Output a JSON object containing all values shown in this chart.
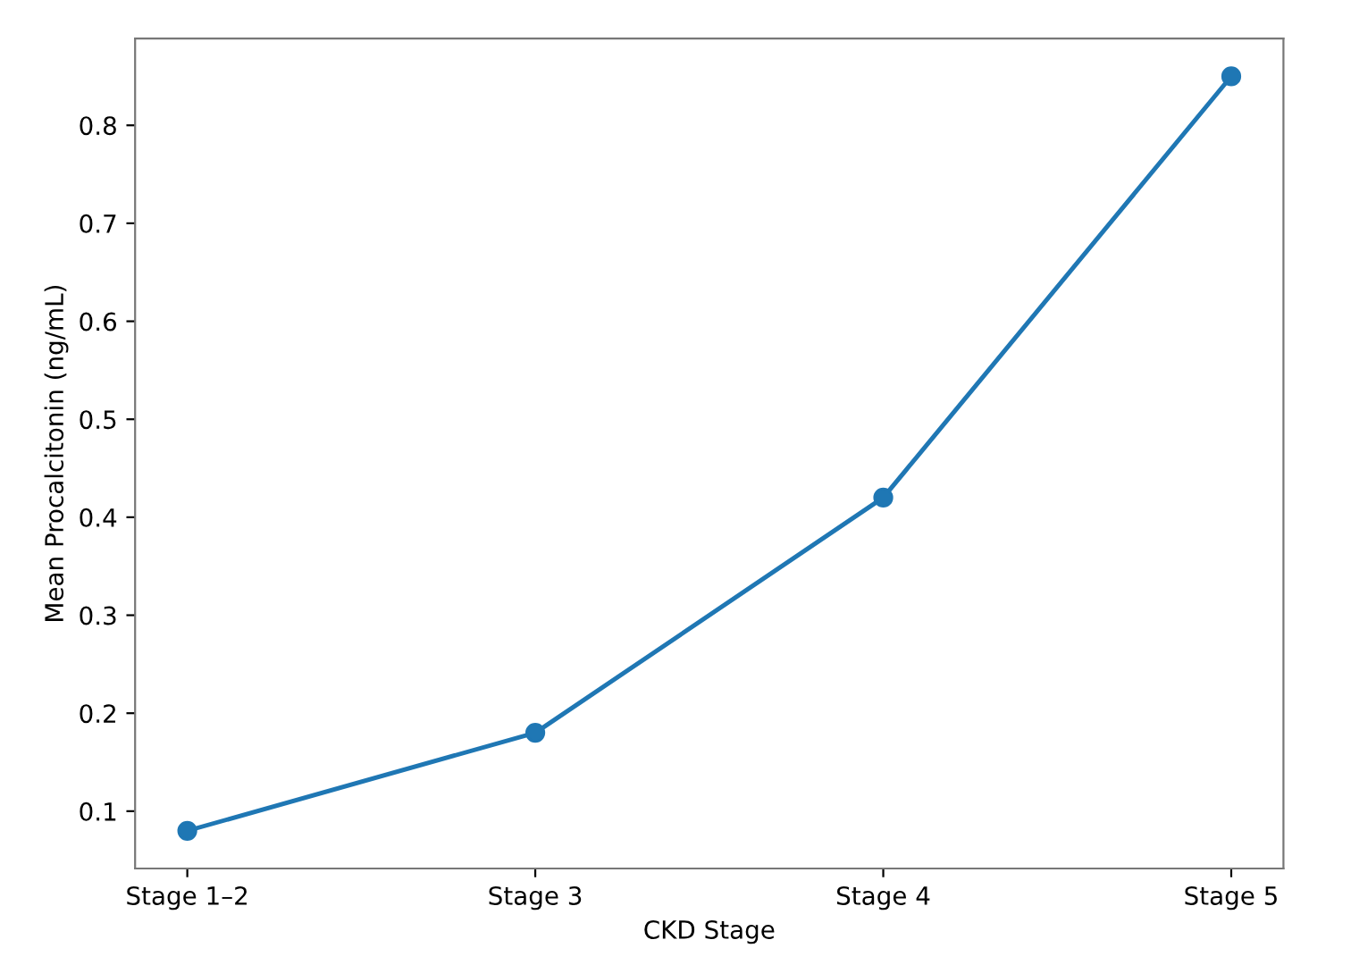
{
  "chart_data": {
    "type": "line",
    "xlabel": "CKD Stage",
    "ylabel": "Mean Procalcitonin (ng/mL)",
    "categories": [
      "Stage 1–2",
      "Stage 3",
      "Stage 4",
      "Stage 5"
    ],
    "series": [
      {
        "color": "#1f77b4",
        "values": [
          0.08,
          0.18,
          0.42,
          0.85
        ]
      }
    ],
    "ylim": [
      0.0415,
      0.8885
    ],
    "yticks": [
      0.1,
      0.2,
      0.3,
      0.4,
      0.5,
      0.6,
      0.7,
      0.8
    ],
    "marker": "circle",
    "line_style": "solid",
    "grid": false
  }
}
